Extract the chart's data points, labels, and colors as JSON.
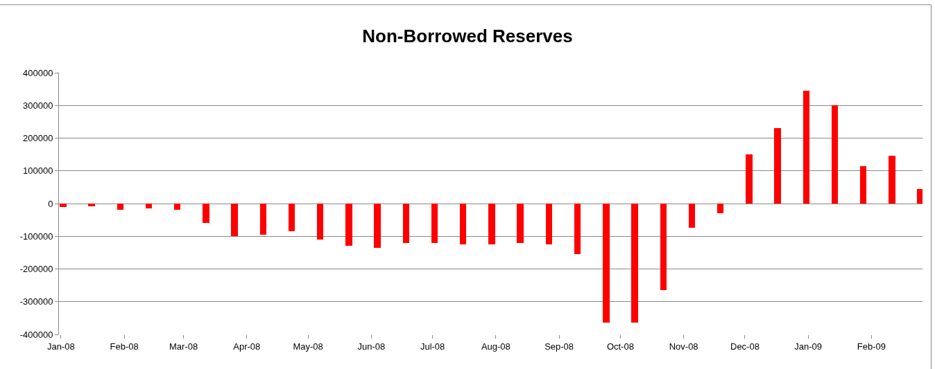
{
  "chart_data": {
    "type": "bar",
    "title": "Non-Borrowed Reserves",
    "x": [
      "2008-01-02",
      "2008-01-16",
      "2008-01-30",
      "2008-02-13",
      "2008-02-27",
      "2008-03-12",
      "2008-03-26",
      "2008-04-09",
      "2008-04-23",
      "2008-05-07",
      "2008-05-21",
      "2008-06-04",
      "2008-06-18",
      "2008-07-02",
      "2008-07-16",
      "2008-07-30",
      "2008-08-13",
      "2008-08-27",
      "2008-09-10",
      "2008-09-24",
      "2008-10-08",
      "2008-10-22",
      "2008-11-05",
      "2008-11-19",
      "2008-12-03",
      "2008-12-17",
      "2008-12-31",
      "2009-01-14",
      "2009-01-28",
      "2009-02-11",
      "2009-02-25"
    ],
    "series": [
      {
        "color": "#ff0000",
        "values": [
          -10000,
          -8000,
          -20000,
          -15000,
          -20000,
          -60000,
          -100000,
          -95000,
          -85000,
          -110000,
          -130000,
          -135000,
          -120000,
          -120000,
          -125000,
          -125000,
          -120000,
          -125000,
          -155000,
          -365000,
          -365000,
          -265000,
          -75000,
          -30000,
          150000,
          230000,
          345000,
          300000,
          115000,
          145000,
          45000
        ]
      }
    ],
    "xlim": [
      "2007-12-31",
      "2009-02-26"
    ],
    "xticks": [
      {
        "value": "2008-01-01",
        "label": "Jan-08"
      },
      {
        "value": "2008-02-01",
        "label": "Feb-08"
      },
      {
        "value": "2008-03-01",
        "label": "Mar-08"
      },
      {
        "value": "2008-04-01",
        "label": "Apr-08"
      },
      {
        "value": "2008-05-01",
        "label": "May-08"
      },
      {
        "value": "2008-06-01",
        "label": "Jun-08"
      },
      {
        "value": "2008-07-01",
        "label": "Jul-08"
      },
      {
        "value": "2008-08-01",
        "label": "Aug-08"
      },
      {
        "value": "2008-09-01",
        "label": "Sep-08"
      },
      {
        "value": "2008-10-01",
        "label": "Oct-08"
      },
      {
        "value": "2008-11-01",
        "label": "Nov-08"
      },
      {
        "value": "2008-12-01",
        "label": "Dec-08"
      },
      {
        "value": "2009-01-01",
        "label": "Jan-09"
      },
      {
        "value": "2009-02-01",
        "label": "Feb-09"
      }
    ],
    "ylim": [
      -400000,
      400000
    ],
    "yticks": [
      -400000,
      -300000,
      -200000,
      -100000,
      0,
      100000,
      200000,
      300000,
      400000
    ],
    "grid": "y"
  }
}
